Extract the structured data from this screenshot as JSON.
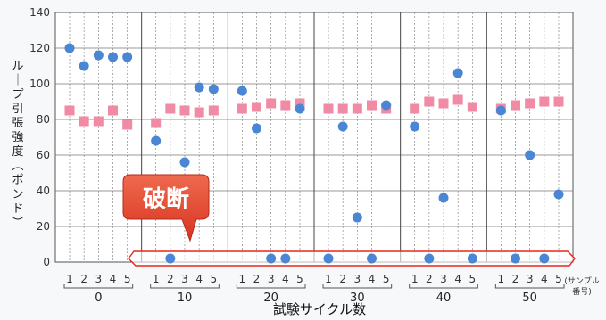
{
  "chart_data": {
    "type": "scatter",
    "title": "",
    "xlabel": "試験サイクル数",
    "ylabel": "ループ引張強度（ポンド）",
    "ylim": [
      0,
      140
    ],
    "yticks": [
      0,
      20,
      40,
      60,
      80,
      100,
      120,
      140
    ],
    "grid": true,
    "groups": [
      "0",
      "10",
      "20",
      "30",
      "40",
      "50"
    ],
    "samples": [
      "1",
      "2",
      "3",
      "4",
      "5"
    ],
    "sample_axis_note": [
      "(サンプル",
      "番号)"
    ],
    "series": [
      {
        "marker": "pink-square",
        "values": [
          [
            85,
            79,
            79,
            85,
            77
          ],
          [
            78,
            86,
            85,
            84,
            85
          ],
          [
            86,
            87,
            89,
            88,
            89
          ],
          [
            86,
            86,
            86,
            88,
            86
          ],
          [
            86,
            90,
            89,
            91,
            87
          ],
          [
            86,
            88,
            89,
            90,
            90
          ]
        ]
      },
      {
        "marker": "blue-circle",
        "values": [
          [
            120,
            110,
            116,
            115,
            115
          ],
          [
            68,
            2,
            56,
            98,
            97
          ],
          [
            96,
            75,
            2,
            2,
            86
          ],
          [
            2,
            76,
            25,
            2,
            88
          ],
          [
            76,
            2,
            36,
            106,
            2
          ],
          [
            85,
            2,
            60,
            2,
            38
          ]
        ]
      }
    ],
    "annotation": "破断",
    "colors": {
      "pink": "#f08aa5",
      "blue": "#4a86d4",
      "callout": "#e24a36",
      "break_band": "#e8261c"
    }
  }
}
